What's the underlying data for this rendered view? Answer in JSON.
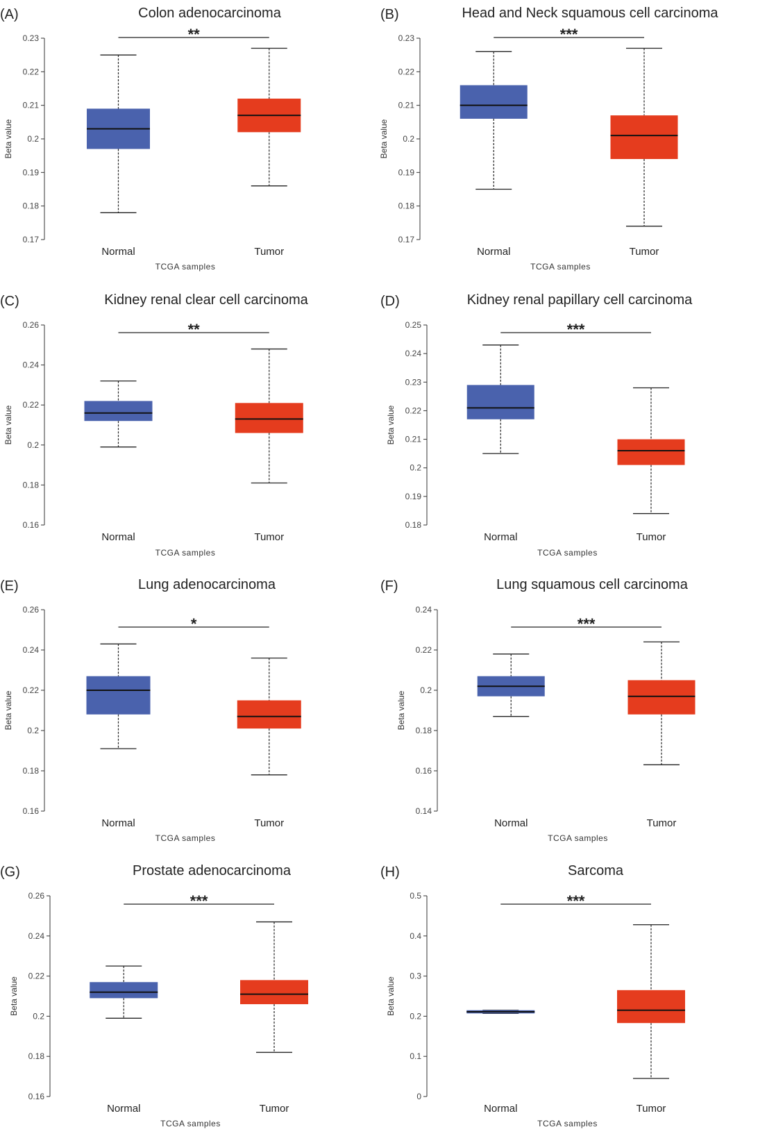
{
  "colors": {
    "normal": "#4a62ad",
    "tumor": "#e53c1e",
    "axis": "#333333",
    "median": "#111111"
  },
  "chart_data": [
    {
      "type": "box",
      "panel_label": "(A)",
      "title": "Colon adenocarcinoma",
      "xlabel": "TCGA samples",
      "ylabel": "Beta value",
      "ylim": [
        0.17,
        0.23
      ],
      "yticks": [
        0.17,
        0.18,
        0.19,
        0.2,
        0.21,
        0.22,
        0.23
      ],
      "ytick_labels": [
        "0.17",
        "0.18",
        "0.19",
        "0.2",
        "0.21",
        "0.22",
        "0.23"
      ],
      "significance": "**",
      "categories": [
        "Normal",
        "Tumor"
      ],
      "boxes": [
        {
          "min": 0.178,
          "q1": 0.197,
          "median": 0.203,
          "q3": 0.209,
          "max": 0.225
        },
        {
          "min": 0.186,
          "q1": 0.202,
          "median": 0.207,
          "q3": 0.212,
          "max": 0.227
        }
      ]
    },
    {
      "type": "box",
      "panel_label": "(B)",
      "title": "Head and Neck squamous cell carcinoma",
      "xlabel": "TCGA samples",
      "ylabel": "Beta value",
      "ylim": [
        0.17,
        0.23
      ],
      "yticks": [
        0.17,
        0.18,
        0.19,
        0.2,
        0.21,
        0.22,
        0.23
      ],
      "ytick_labels": [
        "0.17",
        "0.18",
        "0.19",
        "0.2",
        "0.21",
        "0.22",
        "0.23"
      ],
      "significance": "***",
      "categories": [
        "Normal",
        "Tumor"
      ],
      "boxes": [
        {
          "min": 0.185,
          "q1": 0.206,
          "median": 0.21,
          "q3": 0.216,
          "max": 0.226
        },
        {
          "min": 0.174,
          "q1": 0.194,
          "median": 0.201,
          "q3": 0.207,
          "max": 0.227
        }
      ]
    },
    {
      "type": "box",
      "panel_label": "(C)",
      "title": "Kidney renal clear cell carcinoma",
      "xlabel": "TCGA samples",
      "ylabel": "Beta value",
      "ylim": [
        0.16,
        0.26
      ],
      "yticks": [
        0.16,
        0.18,
        0.2,
        0.22,
        0.24,
        0.26
      ],
      "ytick_labels": [
        "0.16",
        "0.18",
        "0.2",
        "0.22",
        "0.24",
        "0.26"
      ],
      "significance": "**",
      "categories": [
        "Normal",
        "Tumor"
      ],
      "boxes": [
        {
          "min": 0.199,
          "q1": 0.212,
          "median": 0.216,
          "q3": 0.222,
          "max": 0.232
        },
        {
          "min": 0.181,
          "q1": 0.206,
          "median": 0.213,
          "q3": 0.221,
          "max": 0.248
        }
      ]
    },
    {
      "type": "box",
      "panel_label": "(D)",
      "title": "Kidney renal papillary cell carcinoma",
      "xlabel": "TCGA samples",
      "ylabel": "Beta value",
      "ylim": [
        0.18,
        0.25
      ],
      "yticks": [
        0.18,
        0.19,
        0.2,
        0.21,
        0.22,
        0.23,
        0.24,
        0.25
      ],
      "ytick_labels": [
        "0.18",
        "0.19",
        "0.2",
        "0.21",
        "0.22",
        "0.23",
        "0.24",
        "0.25"
      ],
      "significance": "***",
      "categories": [
        "Normal",
        "Tumor"
      ],
      "boxes": [
        {
          "min": 0.205,
          "q1": 0.217,
          "median": 0.221,
          "q3": 0.229,
          "max": 0.243
        },
        {
          "min": 0.184,
          "q1": 0.201,
          "median": 0.206,
          "q3": 0.21,
          "max": 0.228
        }
      ]
    },
    {
      "type": "box",
      "panel_label": "(E)",
      "title": "Lung adenocarcinoma",
      "xlabel": "TCGA samples",
      "ylabel": "Beta value",
      "ylim": [
        0.16,
        0.26
      ],
      "yticks": [
        0.16,
        0.18,
        0.2,
        0.22,
        0.24,
        0.26
      ],
      "ytick_labels": [
        "0.16",
        "0.18",
        "0.2",
        "0.22",
        "0.24",
        "0.26"
      ],
      "significance": "*",
      "categories": [
        "Normal",
        "Tumor"
      ],
      "boxes": [
        {
          "min": 0.191,
          "q1": 0.208,
          "median": 0.22,
          "q3": 0.227,
          "max": 0.243
        },
        {
          "min": 0.178,
          "q1": 0.201,
          "median": 0.207,
          "q3": 0.215,
          "max": 0.236
        }
      ]
    },
    {
      "type": "box",
      "panel_label": "(F)",
      "title": "Lung squamous cell carcinoma",
      "xlabel": "TCGA samples",
      "ylabel": "Beta value",
      "ylim": [
        0.14,
        0.24
      ],
      "yticks": [
        0.14,
        0.16,
        0.18,
        0.2,
        0.22,
        0.24
      ],
      "ytick_labels": [
        "0.14",
        "0.16",
        "0.18",
        "0.2",
        "0.22",
        "0.24"
      ],
      "significance": "***",
      "categories": [
        "Normal",
        "Tumor"
      ],
      "boxes": [
        {
          "min": 0.187,
          "q1": 0.197,
          "median": 0.202,
          "q3": 0.207,
          "max": 0.218
        },
        {
          "min": 0.163,
          "q1": 0.188,
          "median": 0.197,
          "q3": 0.205,
          "max": 0.224
        }
      ]
    },
    {
      "type": "box",
      "panel_label": "(G)",
      "title": "Prostate adenocarcinoma",
      "xlabel": "TCGA samples",
      "ylabel": "Beta value",
      "ylim": [
        0.16,
        0.26
      ],
      "yticks": [
        0.16,
        0.18,
        0.2,
        0.22,
        0.24,
        0.26
      ],
      "ytick_labels": [
        "0.16",
        "0.18",
        "0.2",
        "0.22",
        "0.24",
        "0.26"
      ],
      "significance": "***",
      "categories": [
        "Normal",
        "Tumor"
      ],
      "boxes": [
        {
          "min": 0.199,
          "q1": 0.209,
          "median": 0.212,
          "q3": 0.217,
          "max": 0.225
        },
        {
          "min": 0.182,
          "q1": 0.206,
          "median": 0.211,
          "q3": 0.218,
          "max": 0.247
        }
      ]
    },
    {
      "type": "box",
      "panel_label": "(H)",
      "title": "Sarcoma",
      "xlabel": "TCGA samples",
      "ylabel": "Beta value",
      "ylim": [
        0,
        0.5
      ],
      "yticks": [
        0,
        0.1,
        0.2,
        0.3,
        0.4,
        0.5
      ],
      "ytick_labels": [
        "0",
        "0.1",
        "0.2",
        "0.3",
        "0.4",
        "0.5"
      ],
      "significance": "***",
      "categories": [
        "Normal",
        "Tumor"
      ],
      "boxes": [
        {
          "min": 0.207,
          "q1": 0.207,
          "median": 0.211,
          "q3": 0.215,
          "max": 0.215
        },
        {
          "min": 0.045,
          "q1": 0.183,
          "median": 0.215,
          "q3": 0.265,
          "max": 0.428
        }
      ]
    }
  ]
}
